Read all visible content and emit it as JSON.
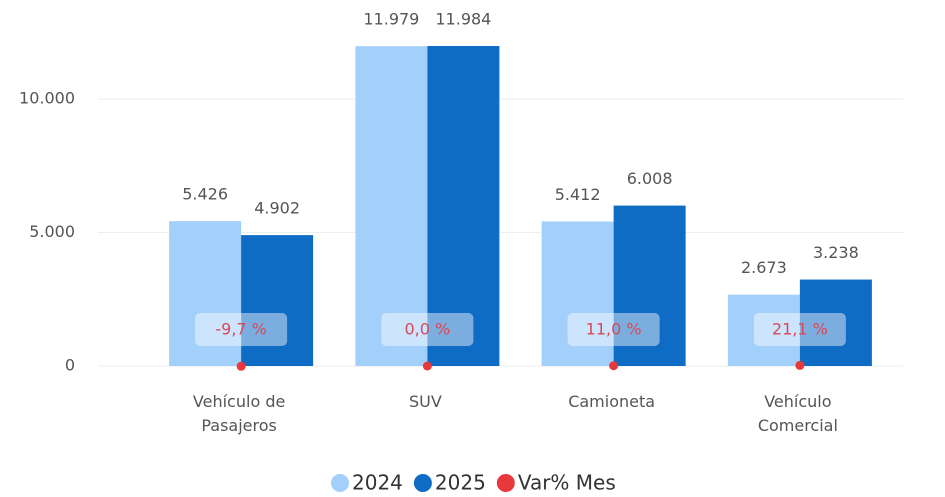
{
  "chart_data": {
    "type": "bar",
    "categories": [
      "Vehículo de Pasajeros",
      "SUV",
      "Camioneta",
      "Vehículo Comercial"
    ],
    "series": [
      {
        "name": "2024",
        "color": "#a3d0fa",
        "values": [
          5426,
          11979,
          5412,
          2673
        ],
        "value_labels": [
          "5.426",
          "11.979",
          "5.412",
          "2.673"
        ]
      },
      {
        "name": "2025",
        "color": "#0f6cc4",
        "values": [
          4902,
          11984,
          6008,
          3238
        ],
        "value_labels": [
          "4.902",
          "11.984",
          "6.008",
          "3.238"
        ]
      },
      {
        "name": "Var% Mes",
        "color": "#e8383d",
        "type": "scatter",
        "values": [
          -9.7,
          0.0,
          11.0,
          21.1
        ],
        "value_labels": [
          "-9,7 %",
          "0,0 %",
          "11,0 %",
          "21,1 %"
        ]
      }
    ],
    "ylim": [
      0,
      12500
    ],
    "yticks": [
      0,
      {
        "value": 5000,
        "label": "5.000"
      },
      {
        "value": 10000,
        "label": "10.000"
      }
    ],
    "grid": true,
    "legend": "bottom"
  }
}
